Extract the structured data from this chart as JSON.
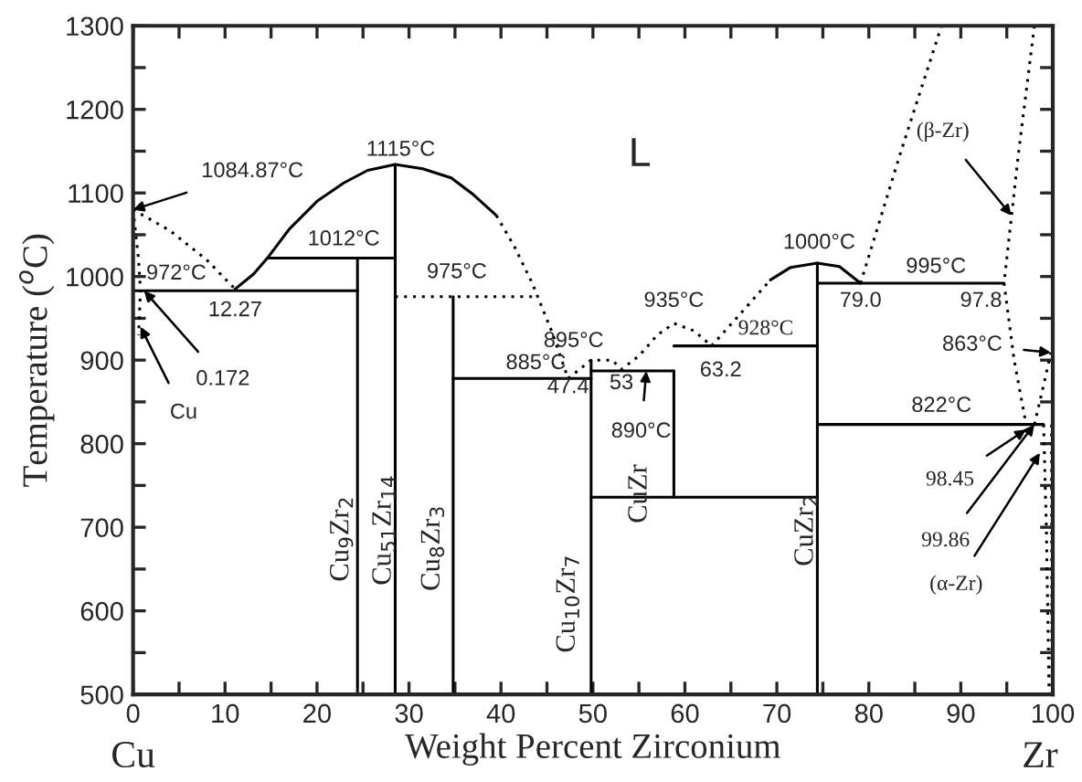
{
  "chart_data": {
    "type": "line",
    "xlabel": "Weight Percent Zirconium",
    "ylabel": "Temperature ($^{o}$C)",
    "xlim": [
      0,
      100
    ],
    "ylim": [
      500,
      1300
    ],
    "xticks": [
      0,
      {
        "value": 5,
        "label": null
      },
      10,
      {
        "value": 15,
        "label": null
      },
      20,
      {
        "value": 25,
        "label": null
      },
      30,
      {
        "value": 35,
        "label": null
      },
      40,
      {
        "value": 45,
        "label": null
      },
      50,
      {
        "value": 55,
        "label": null
      },
      60,
      {
        "value": 65,
        "label": null
      },
      70,
      {
        "value": 75,
        "label": null
      },
      80,
      {
        "value": 85,
        "label": null
      },
      90,
      {
        "value": 95,
        "label": null
      },
      100
    ],
    "yticks": [
      500,
      {
        "value": 550,
        "label": null
      },
      600,
      {
        "value": 650,
        "label": null
      },
      700,
      {
        "value": 750,
        "label": null
      },
      800,
      {
        "value": 850,
        "label": null
      },
      900,
      {
        "value": 950,
        "label": null
      },
      1000,
      {
        "value": 1050,
        "label": null
      },
      1100,
      {
        "value": 1150,
        "label": null
      },
      1200,
      {
        "value": 1250,
        "label": null
      },
      1300
    ],
    "grid": false,
    "marker": "none",
    "series": [
      {
        "color": "#000000",
        "line_style": "dotted",
        "x": [
          0,
          4,
          8,
          11.1
        ],
        "values": [
          1080,
          1055,
          1020,
          985
        ]
      },
      {
        "color": "#000000",
        "line_style": "dotted",
        "x": [
          0,
          0.6,
          0.8,
          0.6
        ],
        "values": [
          1080,
          1020,
          983,
          930
        ]
      },
      {
        "color": "#000000",
        "line_style": "solid",
        "x": [
          0,
          24.4
        ],
        "values": [
          983,
          983
        ]
      },
      {
        "color": "#000000",
        "line_style": "solid",
        "x": [
          11.1,
          13.1,
          14.6,
          17,
          20,
          22.9,
          25.5,
          28.5,
          31.5,
          34.6,
          37,
          39.5
        ],
        "values": [
          985,
          1003,
          1022,
          1057,
          1090,
          1112,
          1127,
          1134,
          1129,
          1118,
          1098,
          1073
        ]
      },
      {
        "color": "#000000",
        "line_style": "dotted",
        "x": [
          39.5,
          41.5,
          43.4,
          45.5,
          47.3
        ],
        "values": [
          1073,
          1035,
          992,
          935,
          878
        ]
      },
      {
        "color": "#000000",
        "line_style": "solid",
        "x": [
          14.6,
          28.5
        ],
        "values": [
          1022,
          1022
        ]
      },
      {
        "color": "#000000",
        "line_style": "dotted",
        "x": [
          28.5,
          44
        ],
        "values": [
          976,
          976
        ]
      },
      {
        "color": "#000000",
        "line_style": "solid",
        "x": [
          24.4,
          24.4
        ],
        "values": [
          1022,
          500
        ]
      },
      {
        "color": "#000000",
        "line_style": "solid",
        "x": [
          28.5,
          28.5
        ],
        "values": [
          1134,
          500
        ]
      },
      {
        "color": "#000000",
        "line_style": "solid",
        "x": [
          34.8,
          34.8
        ],
        "values": [
          976,
          500
        ]
      },
      {
        "color": "#000000",
        "line_style": "solid",
        "x": [
          49.8,
          49.8
        ],
        "values": [
          900,
          500
        ]
      },
      {
        "color": "#000000",
        "line_style": "solid",
        "x": [
          58.8,
          58.8
        ],
        "values": [
          887,
          736
        ]
      },
      {
        "color": "#000000",
        "line_style": "solid",
        "x": [
          74.4,
          74.4
        ],
        "values": [
          1016,
          500
        ]
      },
      {
        "color": "#000000",
        "line_style": "solid",
        "x": [
          34.8,
          49.8
        ],
        "values": [
          878,
          878
        ]
      },
      {
        "color": "#000000",
        "line_style": "dotted",
        "x": [
          47.3,
          49.8,
          52.1,
          53.1,
          55,
          57,
          58.8,
          61,
          62.9
        ],
        "values": [
          878,
          900,
          900,
          889,
          905,
          930,
          944,
          935,
          917
        ]
      },
      {
        "color": "#000000",
        "line_style": "solid",
        "x": [
          49.8,
          58.8
        ],
        "values": [
          887,
          887
        ]
      },
      {
        "color": "#000000",
        "line_style": "solid",
        "x": [
          58.8,
          74.4
        ],
        "values": [
          917,
          917
        ]
      },
      {
        "color": "#000000",
        "line_style": "dotted",
        "x": [
          62.9,
          66,
          69.3
        ],
        "values": [
          917,
          955,
          996
        ]
      },
      {
        "color": "#000000",
        "line_style": "solid",
        "x": [
          69.3,
          71.5,
          74.4,
          76.8,
          79.1
        ],
        "values": [
          996,
          1011,
          1016,
          1012,
          992
        ]
      },
      {
        "color": "#000000",
        "line_style": "solid",
        "x": [
          74.4,
          94.7
        ],
        "values": [
          992,
          992
        ]
      },
      {
        "color": "#000000",
        "line_style": "dotted",
        "x": [
          79.1,
          83.5,
          87.9
        ],
        "values": [
          992,
          1150,
          1300
        ]
      },
      {
        "color": "#000000",
        "line_style": "dotted",
        "x": [
          98.0,
          96.3,
          94.7,
          95.8,
          97.1
        ],
        "values": [
          1300,
          1150,
          992,
          900,
          823
        ]
      },
      {
        "color": "#000000",
        "line_style": "solid",
        "x": [
          74.4,
          99.0
        ],
        "values": [
          823,
          823
        ]
      },
      {
        "color": "#000000",
        "line_style": "solid",
        "x": [
          49.8,
          74.4
        ],
        "values": [
          736,
          736
        ]
      },
      {
        "color": "#000000",
        "line_style": "dotted",
        "x": [
          98.0,
          99.0,
          99.8
        ],
        "values": [
          823,
          870,
          909
        ]
      },
      {
        "color": "#000000",
        "line_style": "dotted",
        "x": [
          99.0,
          99.3,
          99.6
        ],
        "values": [
          823,
          700,
          500
        ]
      },
      {
        "color": "#000000",
        "line_style": "dotted",
        "x": [
          99.86,
          99.9
        ],
        "values": [
          823,
          500
        ]
      }
    ],
    "annotations": [
      {
        "text": "1084.87°C",
        "x": 0,
        "y": 1080
      },
      "972°C",
      "12.27",
      {
        "text": "0.172",
        "x": 1.2,
        "y": 983
      },
      {
        "text": "Cu",
        "x": 0.8,
        "y": 940
      },
      "1115°C",
      "1012°C",
      "975°C",
      "885°C",
      "47.4",
      "895°C",
      "53",
      {
        "text": "890°C",
        "x": 55.8,
        "y": 887
      },
      "935°C",
      "928°C",
      "63.2",
      "1000°C",
      "995°C",
      "79.0",
      "97.8",
      "L",
      {
        "text": "(β-Zr)",
        "x": 95.5,
        "y": 1073
      },
      {
        "text": "863°C",
        "x": 99.8,
        "y": 909
      },
      "822°C",
      {
        "text": "98.45",
        "x": 97.1,
        "y": 817
      },
      {
        "text": "99.86",
        "x": 98.0,
        "y": 823
      },
      {
        "text": "(α-Zr)",
        "x": 98.6,
        "y": 789
      },
      "Cu",
      "Zr",
      "Cu$_{9}$Zr$_{2}$",
      "Cu$_{51}$Zr$_{14}$",
      "Cu$_{8}$Zr$_{3}$",
      "Cu$_{10}$Zr$_{7}$",
      "CuZr",
      "CuZr$_{2}$"
    ]
  }
}
